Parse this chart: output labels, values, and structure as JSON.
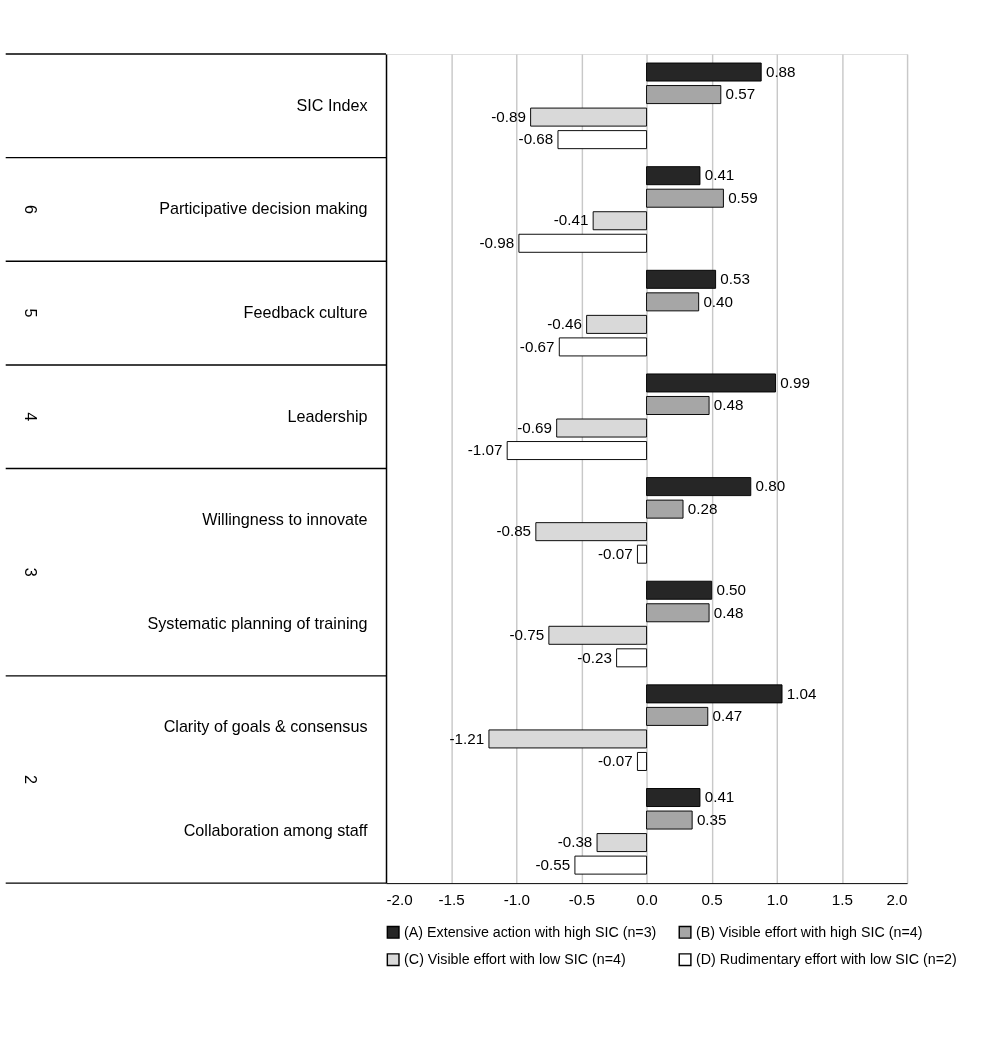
{
  "chart_data": {
    "type": "bar",
    "orientation": "horizontal",
    "categories": [
      "SIC Index",
      "Participative decision making",
      "Feedback culture",
      "Leadership",
      "Willingness to innovate",
      "Systematic planning of training",
      "Clarity of goals & consensus",
      "Collaboration among staff"
    ],
    "series": [
      {
        "name": "(A) Extensive action with high SIC (n=3)",
        "color": "#262626",
        "values": [
          0.88,
          0.41,
          0.53,
          0.99,
          0.8,
          0.5,
          1.04,
          0.41
        ],
        "value_labels": [
          "0.88",
          "0.41",
          "0.53",
          "0.99",
          "0.80",
          "0.50",
          "1.04",
          "0.41"
        ]
      },
      {
        "name": "(B) Visible effort with high SIC (n=4)",
        "color": "#a6a6a6",
        "values": [
          0.57,
          0.59,
          0.4,
          0.48,
          0.28,
          0.48,
          0.47,
          0.35
        ],
        "value_labels": [
          "0.57",
          "0.59",
          "0.40",
          "0.48",
          "0.28",
          "0.48",
          "0.47",
          "0.35"
        ]
      },
      {
        "name": "(C) Visible effort with low SIC (n=4)",
        "color": "#d9d9d9",
        "values": [
          -0.89,
          -0.41,
          -0.46,
          -0.69,
          -0.85,
          -0.75,
          -1.21,
          -0.38
        ],
        "value_labels": [
          "-0.89",
          "-0.41",
          "-0.46",
          "-0.69",
          "-0.85",
          "-0.75",
          "-1.21",
          "-0.38"
        ]
      },
      {
        "name": "(D) Rudimentary effort with low SIC (n=2)",
        "color": "#ffffff",
        "values": [
          -0.68,
          -0.98,
          -0.67,
          -1.07,
          -0.07,
          -0.23,
          -0.07,
          -0.55
        ],
        "value_labels": [
          "-0.68",
          "-0.98",
          "-0.67",
          "-1.07",
          "-0.07",
          "-0.23",
          "-0.07",
          "-0.55"
        ]
      }
    ],
    "xlim": [
      -2.0,
      2.0
    ],
    "xticks": [
      {
        "value": -2,
        "label": "-2.0"
      },
      {
        "value": -1.5,
        "label": "-1.5"
      },
      {
        "value": -1,
        "label": "-1.0"
      },
      {
        "value": -0.5,
        "label": "-0.5"
      },
      {
        "value": 0,
        "label": "0.0"
      },
      {
        "value": 0.5,
        "label": "0.5"
      },
      {
        "value": 1,
        "label": "1.0"
      },
      {
        "value": 1.5,
        "label": "1.5"
      },
      {
        "value": 2,
        "label": "2.0"
      }
    ],
    "grid": "x",
    "legend": "bottom",
    "annotations": [
      "6",
      "5",
      "4",
      "3",
      "2"
    ]
  }
}
